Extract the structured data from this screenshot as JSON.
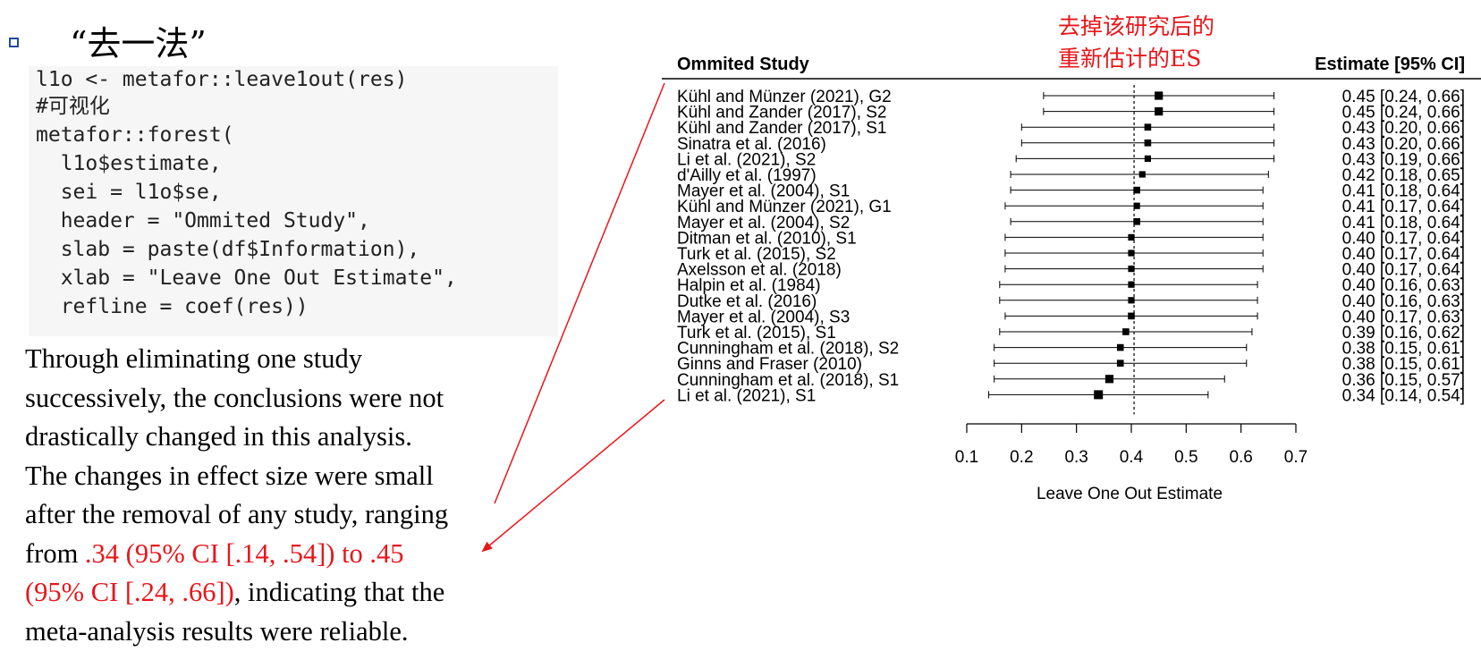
{
  "slide": {
    "title": "“去一法”"
  },
  "code": {
    "lines": [
      "l1o <- metafor::leave1out(res)",
      "#可视化",
      "metafor::forest(",
      "  l1o$estimate,",
      "  sei = l1o$se,",
      "  header = \"Ommited Study\",",
      "  slab = paste(df$Information),",
      "  xlab = \"Leave One Out Estimate\",",
      "  refline = coef(res))"
    ]
  },
  "paragraph": {
    "line1": "Through eliminating one study",
    "line2": "successively, the conclusions were not",
    "line3": "drastically changed in this analysis.",
    "line4": "The changes in effect size were small",
    "line5": "after the removal of any study, ranging",
    "line6_pre": "from ",
    "line6_red": ".34 (95% CI [.14, .54]) to .45",
    "line7_red": "(95% CI [.24, .66])",
    "line7_post": ", indicating that the",
    "line8": "meta-analysis results were reliable."
  },
  "annotation": {
    "line1": "去掉该研究后的",
    "line2": "重新估计的ES",
    "color": "#e8161b"
  },
  "chart_data": {
    "type": "forest",
    "header_left": "Ommited Study",
    "header_right": "Estimate [95% CI]",
    "xlabel": "Leave One Out Estimate",
    "xlim": [
      0.1,
      0.7
    ],
    "xticks": [
      "0.1",
      "0.2",
      "0.3",
      "0.4",
      "0.5",
      "0.6",
      "0.7"
    ],
    "refline": 0.405,
    "studies": [
      {
        "label": "Kühl and Münzer (2021), G2",
        "est": 0.45,
        "lo": 0.24,
        "hi": 0.66,
        "text": "0.45 [0.24, 0.66]"
      },
      {
        "label": "Kühl and Zander (2017), S2",
        "est": 0.45,
        "lo": 0.24,
        "hi": 0.66,
        "text": "0.45 [0.24, 0.66]"
      },
      {
        "label": "Kühl and Zander (2017), S1",
        "est": 0.43,
        "lo": 0.2,
        "hi": 0.66,
        "text": "0.43 [0.20, 0.66]"
      },
      {
        "label": "Sinatra et al. (2016)",
        "est": 0.43,
        "lo": 0.2,
        "hi": 0.66,
        "text": "0.43 [0.20, 0.66]"
      },
      {
        "label": "Li et al. (2021), S2",
        "est": 0.43,
        "lo": 0.19,
        "hi": 0.66,
        "text": "0.43 [0.19, 0.66]"
      },
      {
        "label": "d'Ailly et al. (1997)",
        "est": 0.42,
        "lo": 0.18,
        "hi": 0.65,
        "text": "0.42 [0.18, 0.65]"
      },
      {
        "label": "Mayer et al. (2004), S1",
        "est": 0.41,
        "lo": 0.18,
        "hi": 0.64,
        "text": "0.41 [0.18, 0.64]"
      },
      {
        "label": "Kühl and Münzer (2021), G1",
        "est": 0.41,
        "lo": 0.17,
        "hi": 0.64,
        "text": "0.41 [0.17, 0.64]"
      },
      {
        "label": "Mayer et al. (2004), S2",
        "est": 0.41,
        "lo": 0.18,
        "hi": 0.64,
        "text": "0.41 [0.18, 0.64]"
      },
      {
        "label": "Ditman et al. (2010), S1",
        "est": 0.4,
        "lo": 0.17,
        "hi": 0.64,
        "text": "0.40 [0.17, 0.64]"
      },
      {
        "label": "Turk et al. (2015), S2",
        "est": 0.4,
        "lo": 0.17,
        "hi": 0.64,
        "text": "0.40 [0.17, 0.64]"
      },
      {
        "label": "Axelsson et al. (2018)",
        "est": 0.4,
        "lo": 0.17,
        "hi": 0.64,
        "text": "0.40 [0.17, 0.64]"
      },
      {
        "label": "Halpin et al. (1984)",
        "est": 0.4,
        "lo": 0.16,
        "hi": 0.63,
        "text": "0.40 [0.16, 0.63]"
      },
      {
        "label": "Dutke et al. (2016)",
        "est": 0.4,
        "lo": 0.16,
        "hi": 0.63,
        "text": "0.40 [0.16, 0.63]"
      },
      {
        "label": "Mayer et al. (2004), S3",
        "est": 0.4,
        "lo": 0.17,
        "hi": 0.63,
        "text": "0.40 [0.17, 0.63]"
      },
      {
        "label": "Turk et al. (2015), S1",
        "est": 0.39,
        "lo": 0.16,
        "hi": 0.62,
        "text": "0.39 [0.16, 0.62]"
      },
      {
        "label": "Cunningham et al. (2018), S2",
        "est": 0.38,
        "lo": 0.15,
        "hi": 0.61,
        "text": "0.38 [0.15, 0.61]"
      },
      {
        "label": "Ginns and Fraser (2010)",
        "est": 0.38,
        "lo": 0.15,
        "hi": 0.61,
        "text": "0.38 [0.15, 0.61]"
      },
      {
        "label": "Cunningham et al. (2018), S1",
        "est": 0.36,
        "lo": 0.15,
        "hi": 0.57,
        "text": "0.36 [0.15, 0.57]"
      },
      {
        "label": "Li et al. (2021), S1",
        "est": 0.34,
        "lo": 0.14,
        "hi": 0.54,
        "text": "0.34 [0.14, 0.54]"
      }
    ]
  }
}
